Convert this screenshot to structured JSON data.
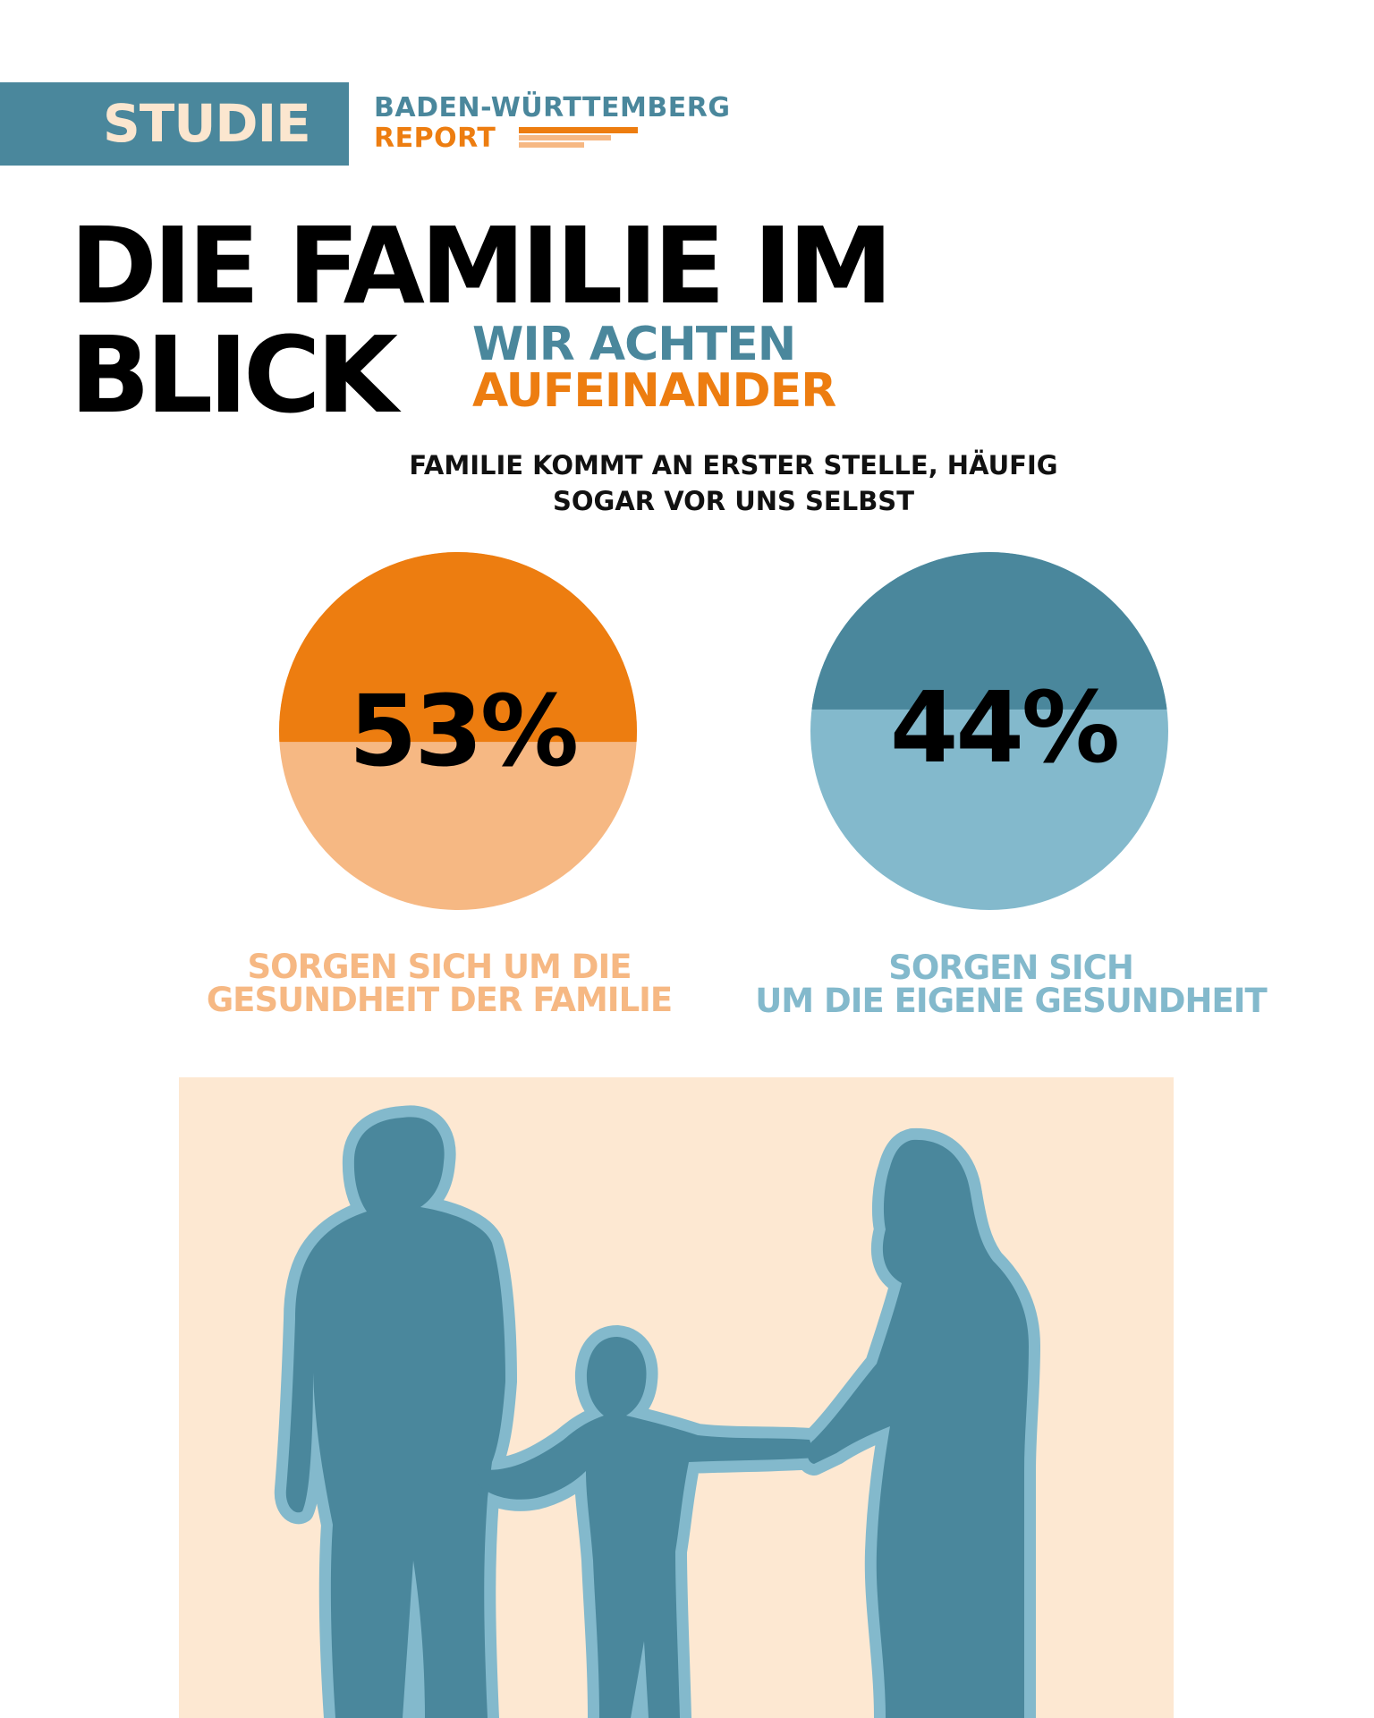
{
  "header": {
    "badge_label": "STUDIE",
    "report_line1": "BADEN-WÜRTTEMBERG",
    "report_line2": "REPORT"
  },
  "title": {
    "line1": "DIE FAMILIE IM",
    "line2": "BLICK",
    "subtitle_line1": "WIR ACHTEN",
    "subtitle_line2": "AUFEINANDER"
  },
  "intro": {
    "line1": "FAMILIE KOMMT AN ERSTER STELLE, HÄUFIG",
    "line2": "SOGAR VOR UNS SELBST"
  },
  "stats": [
    {
      "value": 53,
      "label": "53%",
      "caption_line1": "SORGEN SICH UM DIE",
      "caption_line2": "GESUNDHEIT DER FAMILIE",
      "color_dark": "#ed7d10",
      "color_light": "#f6b883"
    },
    {
      "value": 44,
      "label": "44%",
      "caption_line1": "SORGEN SICH",
      "caption_line2": "UM DIE EIGENE GESUNDHEIT",
      "color_dark": "#4a879c",
      "color_light": "#83b9cc"
    }
  ],
  "illustration": {
    "icon": "family-silhouette",
    "background": "#fde8d2",
    "figure_color": "#4a879c",
    "outline_color": "#83b9cc"
  }
}
